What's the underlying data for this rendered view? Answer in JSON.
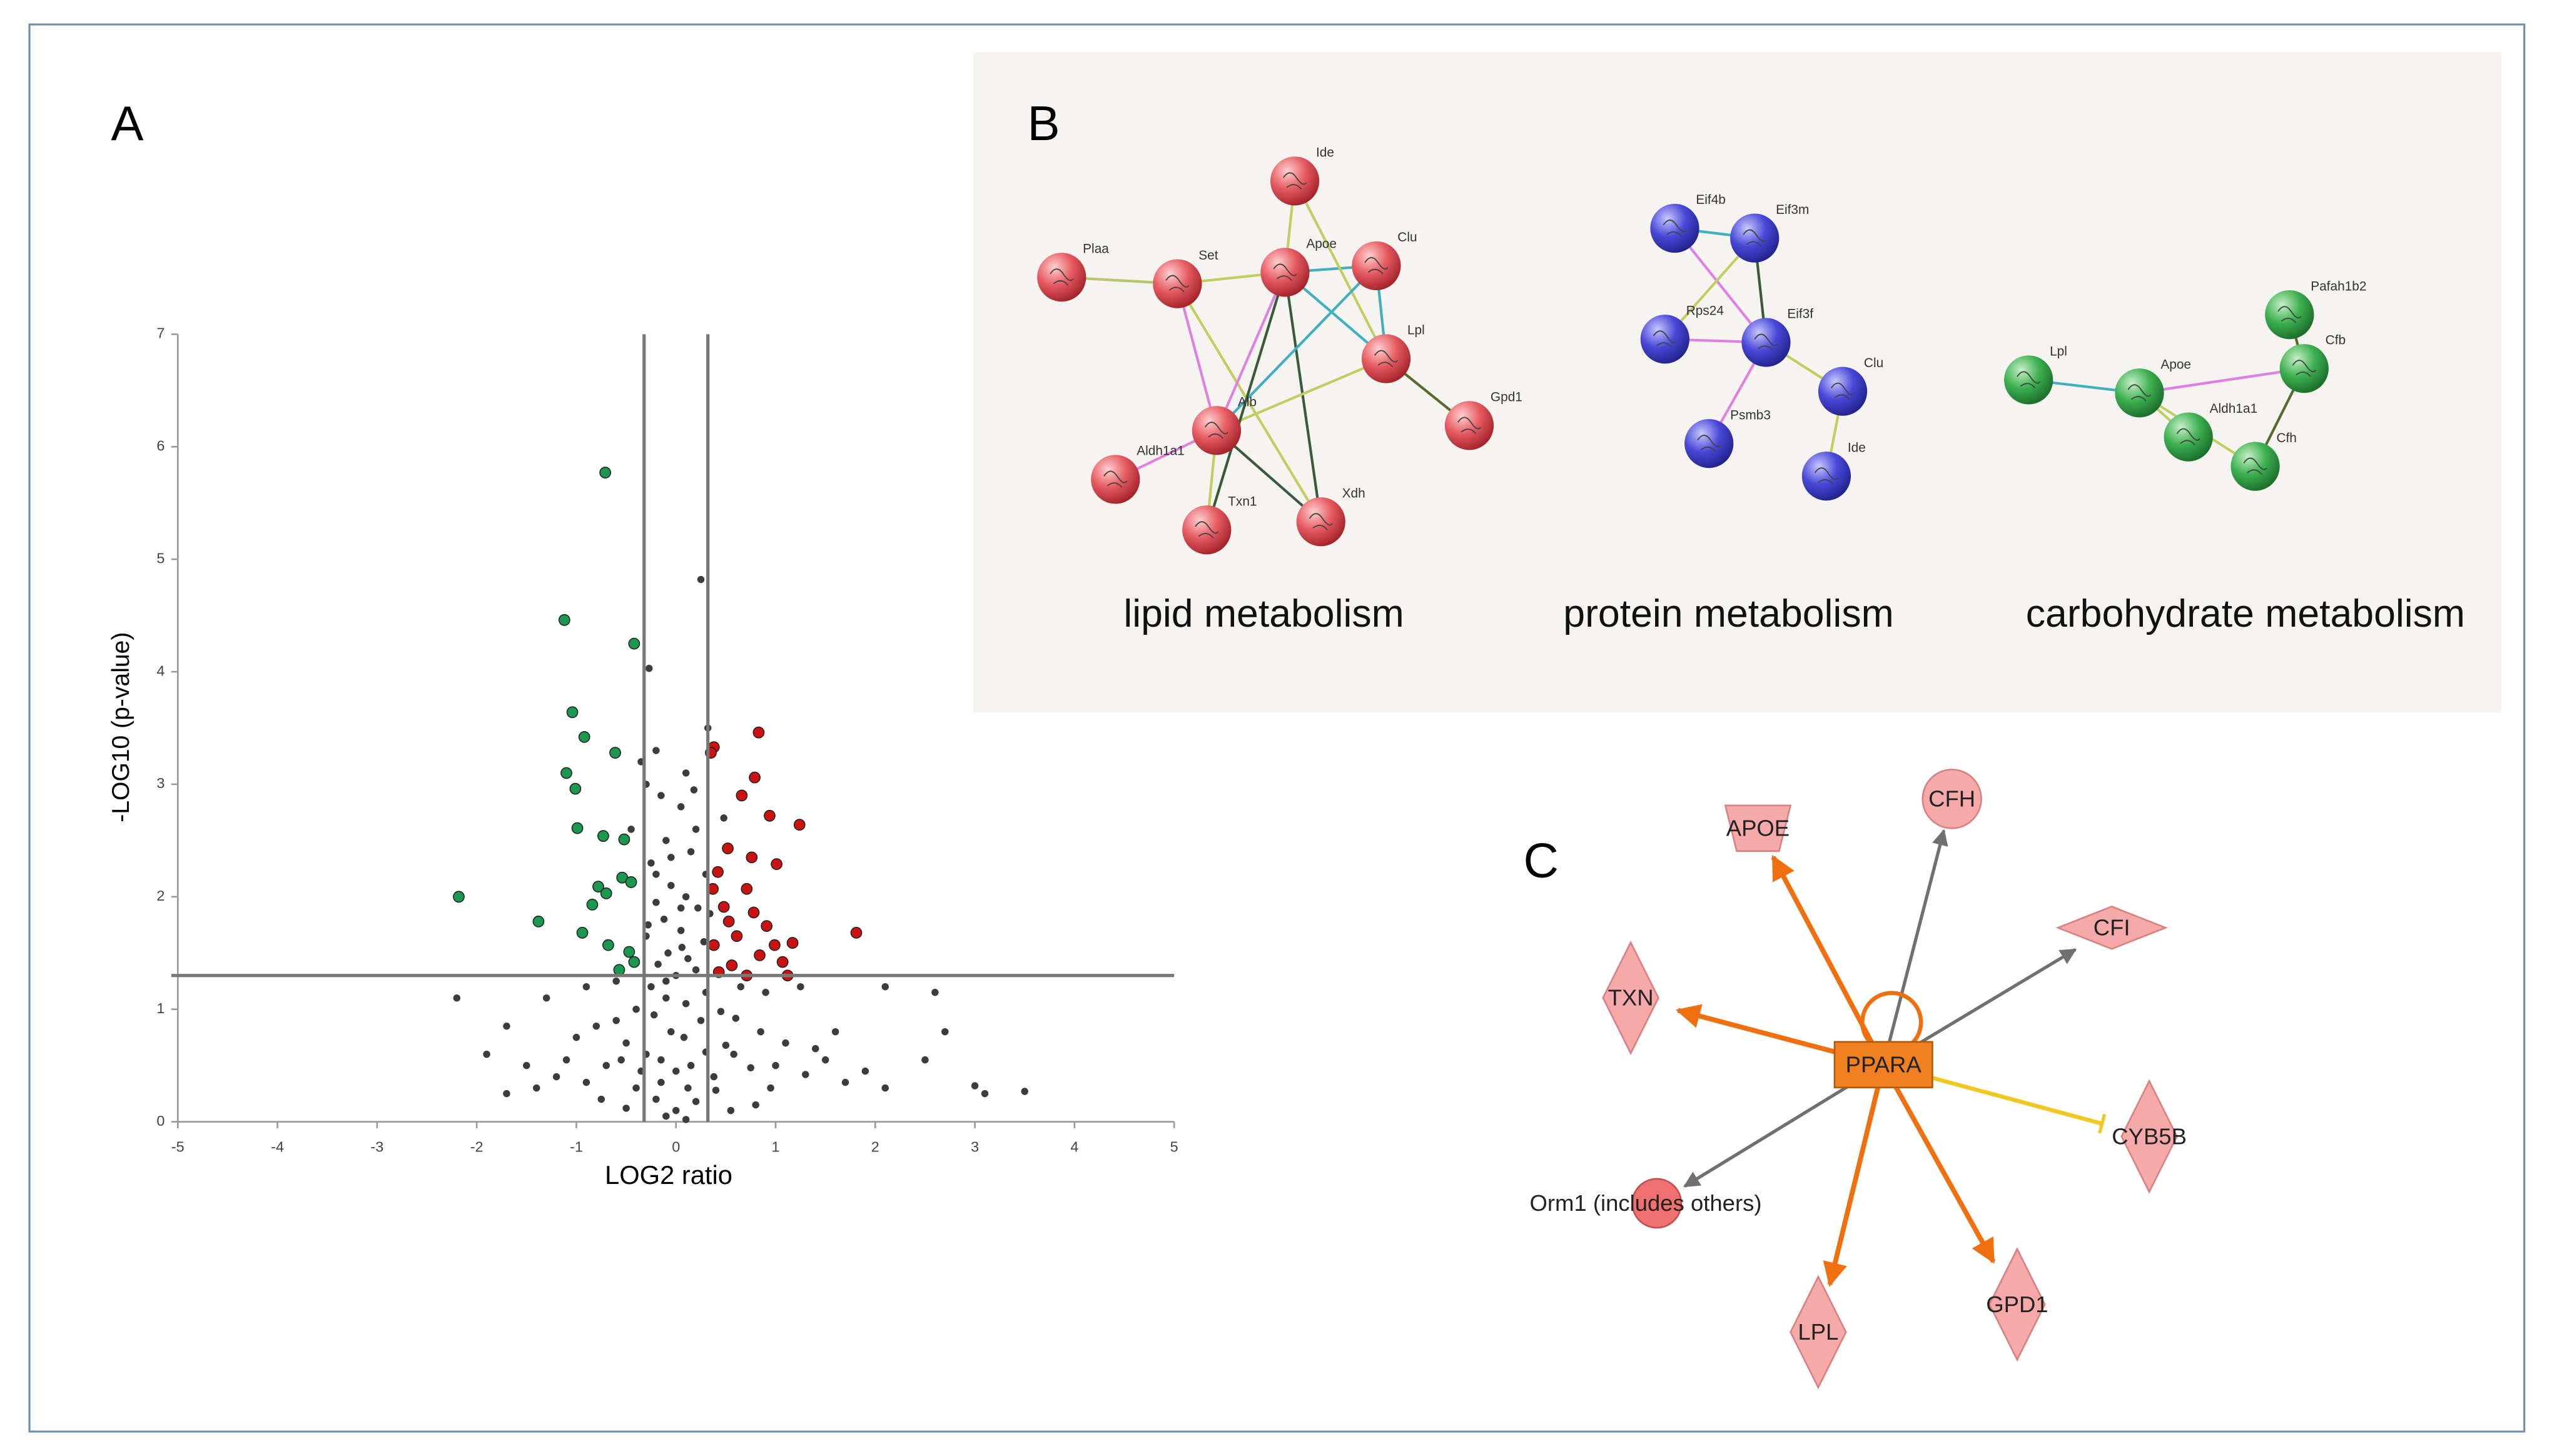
{
  "panel_labels": [
    "A",
    "B",
    "C"
  ],
  "chart_data": {
    "type": "scatter",
    "xlabel": "LOG2 ratio",
    "ylabel": "-LOG10 (p-value)",
    "xlim": [
      -5,
      5
    ],
    "ylim": [
      0,
      7
    ],
    "xticks": [
      -5,
      -4,
      -3,
      -2,
      -1,
      0,
      1,
      2,
      3,
      4,
      5
    ],
    "yticks": [
      0,
      1,
      2,
      3,
      4,
      5,
      6,
      7
    ],
    "thresholds": {
      "x": [
        -0.32,
        0.32
      ],
      "y": 1.3
    },
    "series": [
      {
        "color": "#3c3c3c",
        "x": [
          0.25,
          -0.27,
          -0.2,
          0.1,
          -0.15,
          0.05,
          -0.3,
          0.2,
          -0.1,
          0.15,
          -0.25,
          0.3,
          -0.05,
          0.1,
          -0.2,
          0.22,
          -0.12,
          0.05,
          -0.3,
          0.28,
          -0.08,
          0.12,
          -0.18,
          0.2,
          0,
          -0.25,
          0.3,
          -0.1,
          0.1,
          -0.4,
          0.45,
          -0.6,
          0.6,
          -0.8,
          0.85,
          -1.0,
          1.1,
          -0.5,
          0.5,
          -0.3,
          0.3,
          -0.15,
          0.15,
          0,
          -0.7,
          0.75,
          -1.2,
          1.3,
          -0.9,
          0.95,
          -0.4,
          0.4,
          -0.2,
          0.2,
          0,
          -0.1,
          0.1,
          -0.5,
          0.55,
          -1.4,
          1.5,
          -1.7,
          -2.2,
          -1.7,
          2.1,
          2.6,
          2.7,
          2.5,
          3.0,
          3.1,
          3.5,
          2.1,
          1.9,
          1.6,
          -1.3,
          1.25,
          -0.9,
          0.9,
          -0.6,
          0.65,
          -1.1,
          1.0,
          -0.35,
          0.38,
          -0.05,
          0.08,
          -0.22,
          0.25,
          -0.45,
          0.48,
          -0.2,
          0.18,
          -0.35,
          0.32,
          -0.1,
          0.05,
          -0.28,
          0.34,
          -0.15,
          0.12,
          -0.55,
          0.58,
          1.4,
          -1.5,
          -0.75,
          0.8,
          1.7,
          -1.9,
          -0.05,
          0.06
        ],
        "y": [
          4.82,
          4.03,
          3.3,
          3.1,
          2.9,
          2.8,
          3.0,
          2.6,
          2.5,
          2.4,
          2.3,
          2.2,
          2.1,
          2.0,
          1.95,
          1.9,
          1.8,
          1.7,
          1.65,
          1.6,
          1.5,
          1.45,
          1.4,
          1.35,
          1.3,
          1.2,
          1.15,
          1.1,
          1.05,
          1.0,
          0.98,
          0.9,
          0.92,
          0.85,
          0.8,
          0.75,
          0.7,
          0.7,
          0.68,
          0.6,
          0.62,
          0.55,
          0.5,
          0.45,
          0.5,
          0.48,
          0.4,
          0.42,
          0.35,
          0.3,
          0.3,
          0.28,
          0.2,
          0.18,
          0.1,
          0.05,
          0.02,
          0.12,
          0.1,
          0.3,
          0.55,
          0.25,
          1.1,
          0.85,
          1.2,
          1.15,
          0.8,
          0.55,
          0.32,
          0.25,
          0.27,
          0.3,
          0.45,
          0.8,
          1.1,
          1.2,
          1.2,
          1.15,
          1.25,
          1.2,
          0.55,
          0.5,
          0.45,
          0.4,
          0.8,
          0.75,
          0.95,
          0.9,
          2.6,
          2.7,
          2.2,
          2.95,
          3.2,
          3.5,
          1.25,
          1.9,
          1.75,
          1.85,
          0.35,
          0.3,
          0.55,
          0.6,
          0.65,
          0.5,
          0.2,
          0.15,
          0.35,
          0.6,
          2.35,
          1.55
        ]
      },
      {
        "color": "#1a9850",
        "x": [
          -0.71,
          -1.12,
          -0.42,
          -1.04,
          -0.92,
          -1.1,
          -0.61,
          -1.01,
          -2.18,
          -1.38,
          -0.99,
          -0.73,
          -0.52,
          -0.78,
          -0.7,
          -0.54,
          -0.45,
          -0.94,
          -0.68,
          -0.47,
          -0.57,
          -0.42,
          -0.84
        ],
        "y": [
          5.77,
          4.46,
          4.25,
          3.64,
          3.42,
          3.1,
          3.28,
          2.96,
          2.0,
          1.78,
          2.61,
          2.54,
          2.51,
          2.09,
          2.03,
          2.17,
          2.13,
          1.68,
          1.57,
          1.51,
          1.35,
          1.42,
          1.93
        ]
      },
      {
        "color": "#cc1111",
        "x": [
          0.83,
          0.38,
          0.35,
          0.79,
          0.66,
          1.24,
          0.94,
          0.52,
          0.76,
          1.01,
          0.42,
          0.71,
          0.48,
          1.81,
          1.17,
          0.91,
          0.61,
          0.38,
          0.84,
          1.07,
          0.56,
          0.43,
          0.71,
          1.12,
          0.99,
          0.53,
          0.78,
          0.37
        ],
        "y": [
          3.46,
          3.33,
          3.28,
          3.06,
          2.9,
          2.64,
          2.72,
          2.43,
          2.35,
          2.29,
          2.22,
          2.07,
          1.91,
          1.68,
          1.59,
          1.74,
          1.65,
          1.57,
          1.48,
          1.42,
          1.39,
          1.33,
          1.3,
          1.3,
          1.57,
          1.78,
          1.86,
          2.07
        ]
      }
    ]
  },
  "network": {
    "groups": [
      {
        "caption": "lipid metabolism",
        "nodes": [
          "Ide",
          "Plaa",
          "Set",
          "Apoe",
          "Clu",
          "Lpl",
          "Gpd1",
          "Alb",
          "Aldh1a1",
          "Txn1",
          "Xdh"
        ]
      },
      {
        "caption": "protein metabolism",
        "nodes": [
          "Eif4b",
          "Eif3m",
          "Rps24",
          "Eif3f",
          "Clu",
          "Psmb3",
          "Ide"
        ]
      },
      {
        "caption": "carbohydrate metabolism",
        "nodes": [
          "Pafah1b2",
          "Lpl",
          "Apoe",
          "Cfb",
          "Aldh1a1",
          "Cfh"
        ]
      }
    ]
  },
  "pathway": {
    "nodes": [
      "PPARA",
      "APOE",
      "CFH",
      "CFI",
      "TXN",
      "CYB5B",
      "Orm1 (includes others)",
      "LPL",
      "GPD1"
    ]
  }
}
